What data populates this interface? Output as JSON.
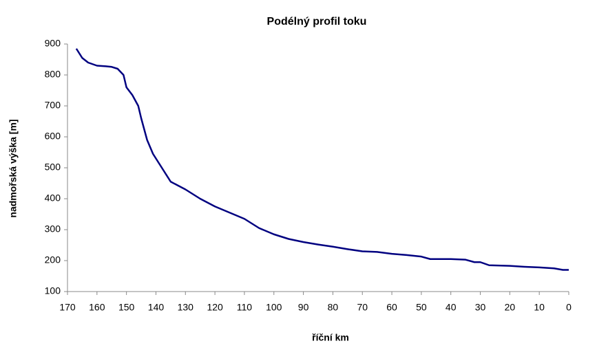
{
  "chart_data": {
    "type": "line",
    "title": "Podélný profil toku",
    "x_label": "říční km",
    "y_label": "nadmořská výška [m]",
    "x": [
      167,
      165,
      163,
      160,
      157,
      155,
      153,
      151,
      150,
      148,
      146,
      145,
      143,
      141,
      139,
      137,
      135,
      130,
      125,
      120,
      115,
      110,
      105,
      100,
      95,
      90,
      85,
      80,
      75,
      70,
      65,
      60,
      55,
      50,
      47,
      40,
      35,
      32,
      30,
      27,
      20,
      15,
      10,
      5,
      2,
      0
    ],
    "series": [
      {
        "color": "#000080",
        "values": [
          885,
          855,
          840,
          830,
          828,
          826,
          820,
          800,
          760,
          735,
          700,
          660,
          590,
          545,
          515,
          485,
          455,
          430,
          400,
          375,
          355,
          335,
          305,
          285,
          270,
          260,
          252,
          245,
          237,
          230,
          228,
          222,
          218,
          213,
          205,
          205,
          203,
          195,
          195,
          185,
          183,
          180,
          178,
          175,
          170,
          170
        ]
      }
    ],
    "xlim": [
      170,
      0
    ],
    "xticks": [
      170,
      160,
      150,
      140,
      130,
      120,
      110,
      100,
      90,
      80,
      70,
      60,
      50,
      40,
      30,
      20,
      10,
      0
    ],
    "ylim": [
      100,
      900
    ],
    "yticks": [
      100,
      200,
      300,
      400,
      500,
      600,
      700,
      800,
      900
    ],
    "grid": false
  }
}
